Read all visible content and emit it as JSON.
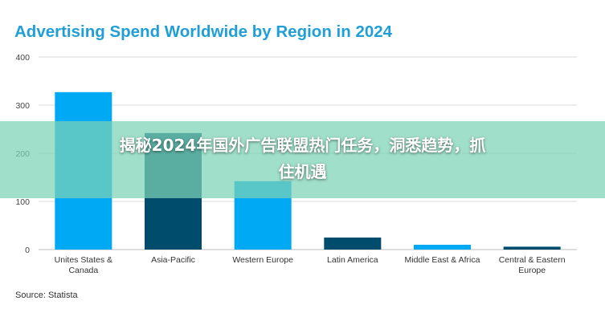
{
  "chart_data": {
    "type": "bar",
    "title": "Advertising Spend Worldwide by Region in 2024",
    "categories": [
      [
        "Unites States &",
        "Canada"
      ],
      [
        "Asia-Pacific"
      ],
      [
        "Western Europe"
      ],
      [
        "Latin America"
      ],
      [
        "Middle East & Africa"
      ],
      [
        "Central & Eastern",
        "Europe"
      ]
    ],
    "values": [
      327,
      242,
      142,
      25,
      10,
      6
    ],
    "bar_colors": [
      "#00a9f4",
      "#004c6d",
      "#00a9f4",
      "#004c6d",
      "#00a9f4",
      "#004c6d"
    ],
    "ylim": [
      0,
      400
    ],
    "yticks": [
      0,
      100,
      200,
      300,
      400
    ],
    "grid": true
  },
  "source": "Source: Statista",
  "overlay": {
    "line1": "揭秘2024年国外广告联盟热门任务，洞悉趋势，抓",
    "line2": "住机遇"
  },
  "colors": {
    "title": "#1f9fd6",
    "banner": "#7cd2b6"
  }
}
